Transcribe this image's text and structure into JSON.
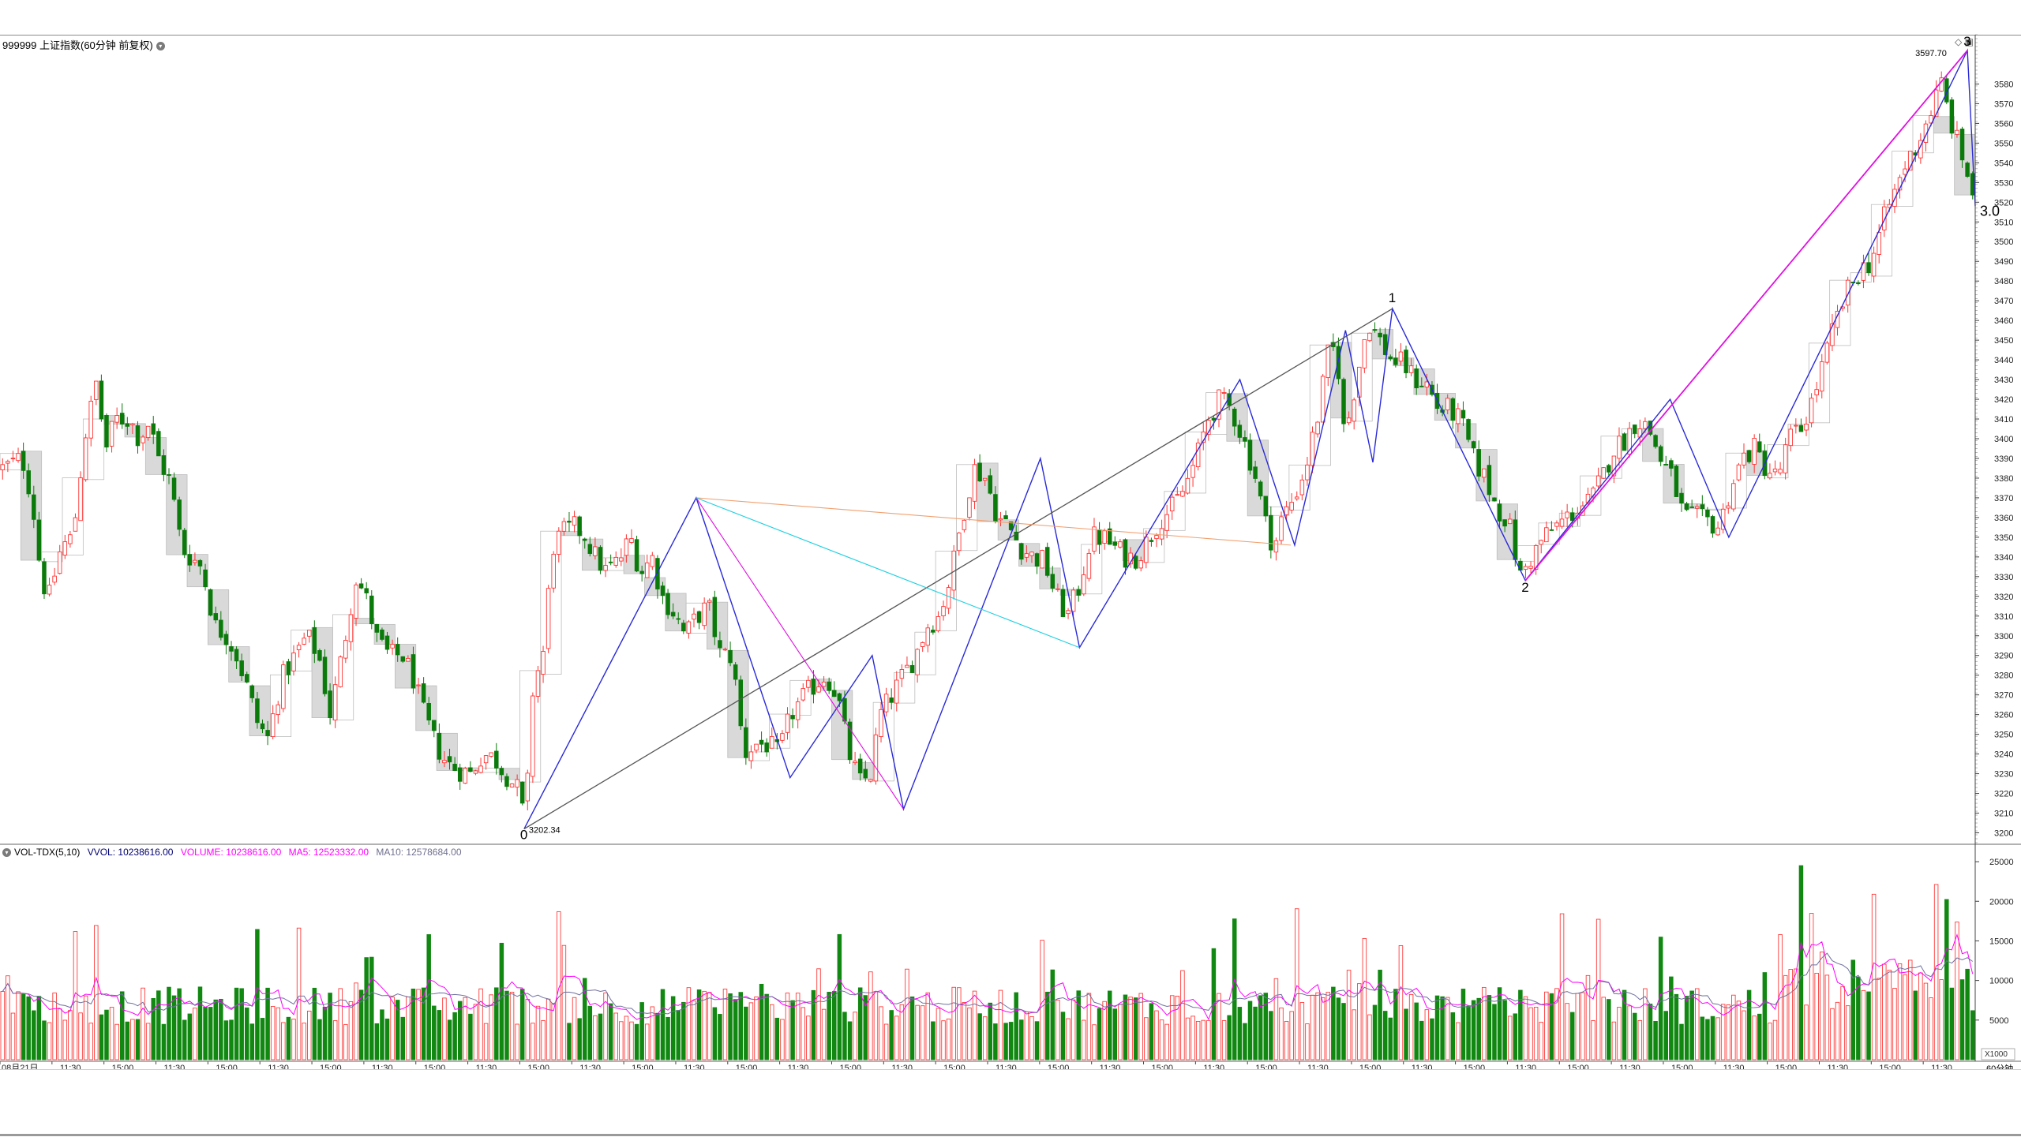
{
  "window": {
    "title": "999999 上证指数(60分钟 前复权)",
    "period_label": "60分钟",
    "multiplier_label": "X1000"
  },
  "volume_indicator": {
    "name": "VOL-TDX(5,10)",
    "vvol_label": "VVOL:",
    "vvol_value": "10238616.00",
    "volume_label": "VOLUME:",
    "volume_value": "10238616.00",
    "ma5_label": "MA5:",
    "ma5_value": "12523332.00",
    "ma10_label": "MA10:",
    "ma10_value": "12578684.00"
  },
  "chart_data": [
    {
      "type": "candlestick",
      "title": "999999 上证指数(60分钟 前复权)",
      "ylim": [
        3195,
        3605
      ],
      "y_ticks": [
        3200,
        3210,
        3220,
        3230,
        3240,
        3250,
        3260,
        3270,
        3280,
        3290,
        3300,
        3310,
        3320,
        3330,
        3340,
        3350,
        3360,
        3370,
        3380,
        3390,
        3400,
        3410,
        3420,
        3430,
        3440,
        3450,
        3460,
        3470,
        3480,
        3490,
        3500,
        3510,
        3520,
        3530,
        3540,
        3550,
        3560,
        3570,
        3580
      ],
      "x_tick_labels": [
        "08月21日",
        "11:30",
        "15:00",
        "11:30",
        "15:00",
        "11:30",
        "15:00",
        "11:30",
        "15:00",
        "11:30",
        "15:00",
        "11:30",
        "15:00",
        "11:30",
        "15:00",
        "11:30",
        "15:00",
        "11:30",
        "15:00",
        "11:30",
        "15:00",
        "11:30",
        "15:00",
        "11:30",
        "15:00",
        "11:30",
        "15:00",
        "11:30",
        "15:00",
        "11:30",
        "15:00",
        "11:30",
        "15:00",
        "11:30",
        "15:00",
        "11:30",
        "15:00",
        "11:30"
      ],
      "n_bars": 380,
      "anchors": [
        [
          0,
          3385
        ],
        [
          10,
          3390
        ],
        [
          15,
          3370
        ],
        [
          20,
          3328
        ],
        [
          24,
          3320
        ],
        [
          30,
          3345
        ],
        [
          36,
          3350
        ],
        [
          42,
          3400
        ],
        [
          48,
          3428
        ],
        [
          53,
          3395
        ],
        [
          58,
          3410
        ],
        [
          65,
          3410
        ],
        [
          70,
          3400
        ],
        [
          75,
          3408
        ],
        [
          80,
          3390
        ],
        [
          86,
          3378
        ],
        [
          92,
          3344
        ],
        [
          102,
          3335
        ],
        [
          109,
          3305
        ],
        [
          115,
          3300
        ],
        [
          120,
          3290
        ],
        [
          125,
          3275
        ],
        [
          131,
          3255
        ],
        [
          136,
          3248
        ],
        [
          143,
          3278
        ],
        [
          150,
          3290
        ],
        [
          156,
          3300
        ],
        [
          162,
          3290
        ],
        [
          168,
          3260
        ],
        [
          174,
          3290
        ],
        [
          181,
          3330
        ],
        [
          186,
          3320
        ],
        [
          192,
          3298
        ],
        [
          198,
          3290
        ],
        [
          205,
          3290
        ],
        [
          210,
          3280
        ],
        [
          216,
          3260
        ],
        [
          222,
          3245
        ],
        [
          228,
          3235
        ],
        [
          234,
          3232
        ],
        [
          240,
          3230
        ],
        [
          246,
          3240
        ],
        [
          252,
          3238
        ],
        [
          258,
          3230
        ],
        [
          264,
          3222
        ],
        [
          268,
          3205
        ],
        [
          272,
          3275
        ],
        [
          277,
          3290
        ],
        [
          282,
          3345
        ],
        [
          287,
          3352
        ],
        [
          293,
          3355
        ],
        [
          298,
          3352
        ],
        [
          304,
          3340
        ],
        [
          309,
          3333
        ],
        [
          316,
          3338
        ],
        [
          322,
          3350
        ],
        [
          327,
          3332
        ],
        [
          333,
          3340
        ],
        [
          338,
          3320
        ],
        [
          344,
          3312
        ],
        [
          350,
          3300
        ],
        [
          356,
          3310
        ],
        [
          362,
          3315
        ],
        [
          368,
          3290
        ],
        [
          374,
          3290
        ],
        [
          380,
          3240
        ],
        [
          386,
          3245
        ],
        [
          392,
          3245
        ],
        [
          398,
          3240
        ],
        [
          404,
          3260
        ],
        [
          410,
          3268
        ],
        [
          416,
          3275
        ],
        [
          422,
          3280
        ],
        [
          428,
          3270
        ],
        [
          434,
          3240
        ],
        [
          440,
          3225
        ],
        [
          445,
          3230
        ],
        [
          450,
          3260
        ],
        [
          456,
          3270
        ],
        [
          462,
          3280
        ],
        [
          468,
          3290
        ],
        [
          474,
          3305
        ],
        [
          480,
          3310
        ],
        [
          486,
          3330
        ],
        [
          492,
          3360
        ],
        [
          498,
          3385
        ],
        [
          504,
          3380
        ],
        [
          510,
          3360
        ],
        [
          516,
          3355
        ],
        [
          522,
          3345
        ],
        [
          528,
          3340
        ],
        [
          534,
          3338
        ],
        [
          540,
          3320
        ],
        [
          546,
          3310
        ],
        [
          552,
          3325
        ],
        [
          558,
          3350
        ],
        [
          564,
          3350
        ],
        [
          570,
          3345
        ],
        [
          576,
          3340
        ],
        [
          582,
          3340
        ],
        [
          588,
          3350
        ],
        [
          594,
          3360
        ],
        [
          600,
          3365
        ],
        [
          606,
          3375
        ],
        [
          612,
          3390
        ],
        [
          618,
          3410
        ],
        [
          624,
          3420
        ],
        [
          630,
          3415
        ],
        [
          636,
          3400
        ],
        [
          642,
          3382
        ],
        [
          648,
          3355
        ],
        [
          652,
          3345
        ],
        [
          656,
          3360
        ],
        [
          662,
          3370
        ],
        [
          668,
          3385
        ],
        [
          674,
          3410
        ],
        [
          680,
          3445
        ],
        [
          684,
          3445
        ],
        [
          688,
          3400
        ],
        [
          694,
          3430
        ],
        [
          700,
          3460
        ],
        [
          706,
          3450
        ],
        [
          712,
          3440
        ],
        [
          718,
          3438
        ],
        [
          724,
          3430
        ],
        [
          730,
          3428
        ],
        [
          736,
          3415
        ],
        [
          742,
          3415
        ],
        [
          748,
          3408
        ],
        [
          754,
          3390
        ],
        [
          760,
          3380
        ],
        [
          766,
          3365
        ],
        [
          772,
          3358
        ],
        [
          778,
          3330
        ],
        [
          784,
          3340
        ],
        [
          790,
          3350
        ],
        [
          796,
          3355
        ],
        [
          802,
          3360
        ],
        [
          808,
          3365
        ],
        [
          814,
          3368
        ],
        [
          820,
          3380
        ],
        [
          826,
          3395
        ],
        [
          832,
          3400
        ],
        [
          838,
          3410
        ],
        [
          844,
          3405
        ],
        [
          850,
          3390
        ],
        [
          856,
          3380
        ],
        [
          862,
          3360
        ],
        [
          868,
          3360
        ],
        [
          874,
          3358
        ],
        [
          880,
          3355
        ],
        [
          886,
          3375
        ],
        [
          892,
          3390
        ],
        [
          898,
          3395
        ],
        [
          904,
          3385
        ],
        [
          910,
          3380
        ],
        [
          916,
          3400
        ],
        [
          922,
          3405
        ],
        [
          928,
          3420
        ],
        [
          934,
          3440
        ],
        [
          940,
          3460
        ],
        [
          946,
          3475
        ],
        [
          952,
          3485
        ],
        [
          958,
          3490
        ],
        [
          964,
          3510
        ],
        [
          970,
          3525
        ],
        [
          976,
          3540
        ],
        [
          982,
          3550
        ],
        [
          988,
          3565
        ],
        [
          994,
          3580
        ],
        [
          999,
          3560
        ],
        [
          1004,
          3545
        ],
        [
          1010,
          3525
        ]
      ],
      "y_axis_note": "tick values shown on right axis",
      "annotations": [
        {
          "label": "0",
          "value": 3202.34
        },
        {
          "label": "1",
          "value": 3466
        },
        {
          "label": "2",
          "value": 3328
        },
        {
          "label": "3",
          "value": 3597.7
        },
        {
          "label": "3.0",
          "value": 3518
        }
      ],
      "high_label": "3597.70",
      "low_label": "3202.34"
    },
    {
      "type": "bar",
      "title": "VOL-TDX(5,10)",
      "ylim": [
        0,
        27000
      ],
      "y_ticks": [
        5000,
        10000,
        15000,
        20000,
        25000
      ],
      "series": [
        {
          "name": "VOLUME",
          "color_up": "#ff3b3b",
          "color_down": "#118811"
        },
        {
          "name": "MA5",
          "color": "#ff00ff"
        },
        {
          "name": "MA10",
          "color": "#7070a0"
        }
      ],
      "typical_volume": 8000,
      "peak_volume": 24500
    }
  ],
  "colors": {
    "up": "#ff3333",
    "down": "#0a7a0a",
    "axis": "#404040",
    "grid_label": "#222222",
    "box": "#bdbdbd",
    "wave_blue": "#2a2ad8",
    "wave_magenta": "#e010e0",
    "wave_gray": "#555555",
    "wave_orange": "#f0a070",
    "wave_cyan": "#20d0e0"
  }
}
